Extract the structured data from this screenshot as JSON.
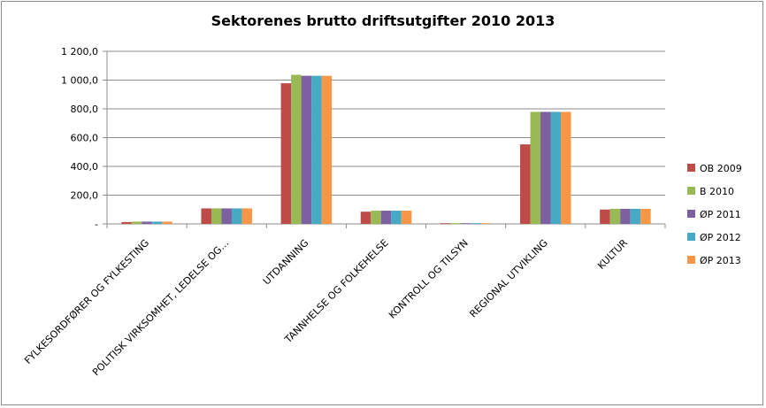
{
  "chart_data": {
    "type": "bar",
    "title": "Sektorenes brutto driftsutgifter  2010  2013",
    "xlabel": "",
    "ylabel": "",
    "ylim": [
      0,
      1200
    ],
    "y_ticks": [
      {
        "value": 0,
        "label": "-"
      },
      {
        "value": 200,
        "label": "200,0"
      },
      {
        "value": 400,
        "label": "400,0"
      },
      {
        "value": 600,
        "label": "600,0"
      },
      {
        "value": 800,
        "label": "800,0"
      },
      {
        "value": 1000,
        "label": "1 000,0"
      },
      {
        "value": 1200,
        "label": "1 200,0"
      }
    ],
    "grid": true,
    "legend_position": "right",
    "categories": [
      "FYLKESORDFØRER OG FYLKESTING",
      "POLITISK VIRKSOMHET,  LEDELSE OG…",
      "UTDANNING",
      "TANNHELSE  OG FOLKEHELSE",
      "KONTROLL OG TILSYN",
      "REGIONAL UTVIKLING",
      "KULTUR"
    ],
    "series": [
      {
        "name": "OB 2009",
        "color": "#be4b48",
        "values": [
          13,
          108,
          978,
          85,
          5,
          553,
          100
        ]
      },
      {
        "name": "B 2010",
        "color": "#98b954",
        "values": [
          16,
          108,
          1037,
          92,
          5,
          779,
          105
        ]
      },
      {
        "name": "ØP 2011",
        "color": "#7d60a0",
        "values": [
          16,
          108,
          1030,
          92,
          5,
          779,
          105
        ]
      },
      {
        "name": "ØP 2012",
        "color": "#46aac5",
        "values": [
          16,
          108,
          1030,
          92,
          5,
          779,
          105
        ]
      },
      {
        "name": "ØP 2013",
        "color": "#f79646",
        "values": [
          16,
          108,
          1030,
          92,
          5,
          779,
          105
        ]
      }
    ]
  }
}
